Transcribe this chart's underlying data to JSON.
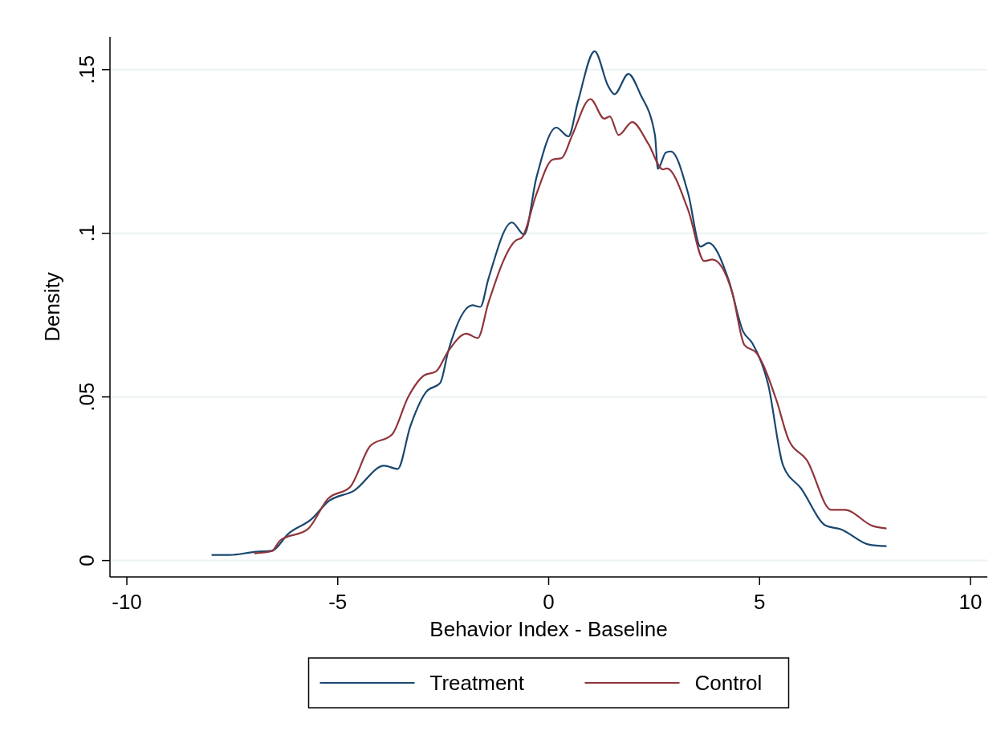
{
  "chart_data": {
    "type": "line",
    "xlabel": "Behavior Index - Baseline",
    "ylabel": "Density",
    "xlim": [
      -10.4,
      10.4
    ],
    "ylim": [
      -0.005,
      0.16
    ],
    "xticks": [
      -10,
      -5,
      0,
      5,
      10
    ],
    "yticks": [
      {
        "value": 0,
        "label": "0"
      },
      {
        "value": 0.05,
        "label": ".05"
      },
      {
        "value": 0.1,
        "label": ".1"
      },
      {
        "value": 0.15,
        "label": ".15"
      }
    ],
    "grid": "y",
    "legend": "bottom",
    "marker": "none",
    "line_style": "solid",
    "series": [
      {
        "name": "Treatment",
        "color": "#1a476f",
        "x": [
          -7.99,
          -7.57,
          -6.94,
          -6.56,
          -6.18,
          -5.61,
          -5.23,
          -4.61,
          -3.9,
          -3.58,
          -3.28,
          -2.9,
          -2.57,
          -2.38,
          -1.81,
          -1.62,
          -1.43,
          -0.87,
          -0.58,
          -0.29,
          0.18,
          0.47,
          0.69,
          1.09,
          1.41,
          1.56,
          1.89,
          2.17,
          2.52,
          2.59,
          2.78,
          2.9,
          3.31,
          3.6,
          3.79,
          4.26,
          4.61,
          4.83,
          5.2,
          5.56,
          5.98,
          6.58,
          6.92,
          7.59,
          8.01
        ],
        "values": [
          0.0017,
          0.0017,
          0.0027,
          0.003,
          0.0081,
          0.0128,
          0.018,
          0.0214,
          0.029,
          0.028,
          0.041,
          0.0516,
          0.0543,
          0.064,
          0.078,
          0.0775,
          0.086,
          0.1033,
          0.0996,
          0.117,
          0.1323,
          0.1296,
          0.14,
          0.1556,
          0.145,
          0.1425,
          0.1487,
          0.1426,
          0.13,
          0.1197,
          0.1247,
          0.125,
          0.112,
          0.0959,
          0.0971,
          0.086,
          0.07,
          0.0664,
          0.054,
          0.029,
          0.0221,
          0.0106,
          0.0096,
          0.0049,
          0.0044
        ]
      },
      {
        "name": "Control",
        "color": "#90353b",
        "x": [
          -6.98,
          -6.56,
          -6.37,
          -5.71,
          -5.23,
          -4.7,
          -4.23,
          -3.71,
          -3.33,
          -2.95,
          -2.67,
          -2.38,
          -1.95,
          -1.68,
          -1.43,
          -0.77,
          -0.64,
          -0.29,
          0.09,
          0.31,
          0.56,
          0.99,
          1.32,
          1.45,
          1.66,
          1.98,
          2.36,
          2.71,
          2.8,
          3.31,
          3.69,
          3.88,
          4.35,
          4.64,
          4.93,
          5.4,
          5.69,
          6.12,
          6.7,
          7.02,
          7.68,
          8.01
        ],
        "values": [
          0.0022,
          0.0029,
          0.0061,
          0.0096,
          0.0189,
          0.0226,
          0.035,
          0.0386,
          0.05,
          0.0566,
          0.0578,
          0.064,
          0.0693,
          0.068,
          0.0787,
          0.0979,
          0.0986,
          0.112,
          0.1225,
          0.123,
          0.13,
          0.141,
          0.135,
          0.1357,
          0.13,
          0.134,
          0.1274,
          0.1195,
          0.1198,
          0.107,
          0.0915,
          0.092,
          0.082,
          0.0659,
          0.0634,
          0.049,
          0.0369,
          0.0307,
          0.0155,
          0.0155,
          0.0106,
          0.0098
        ]
      }
    ]
  }
}
